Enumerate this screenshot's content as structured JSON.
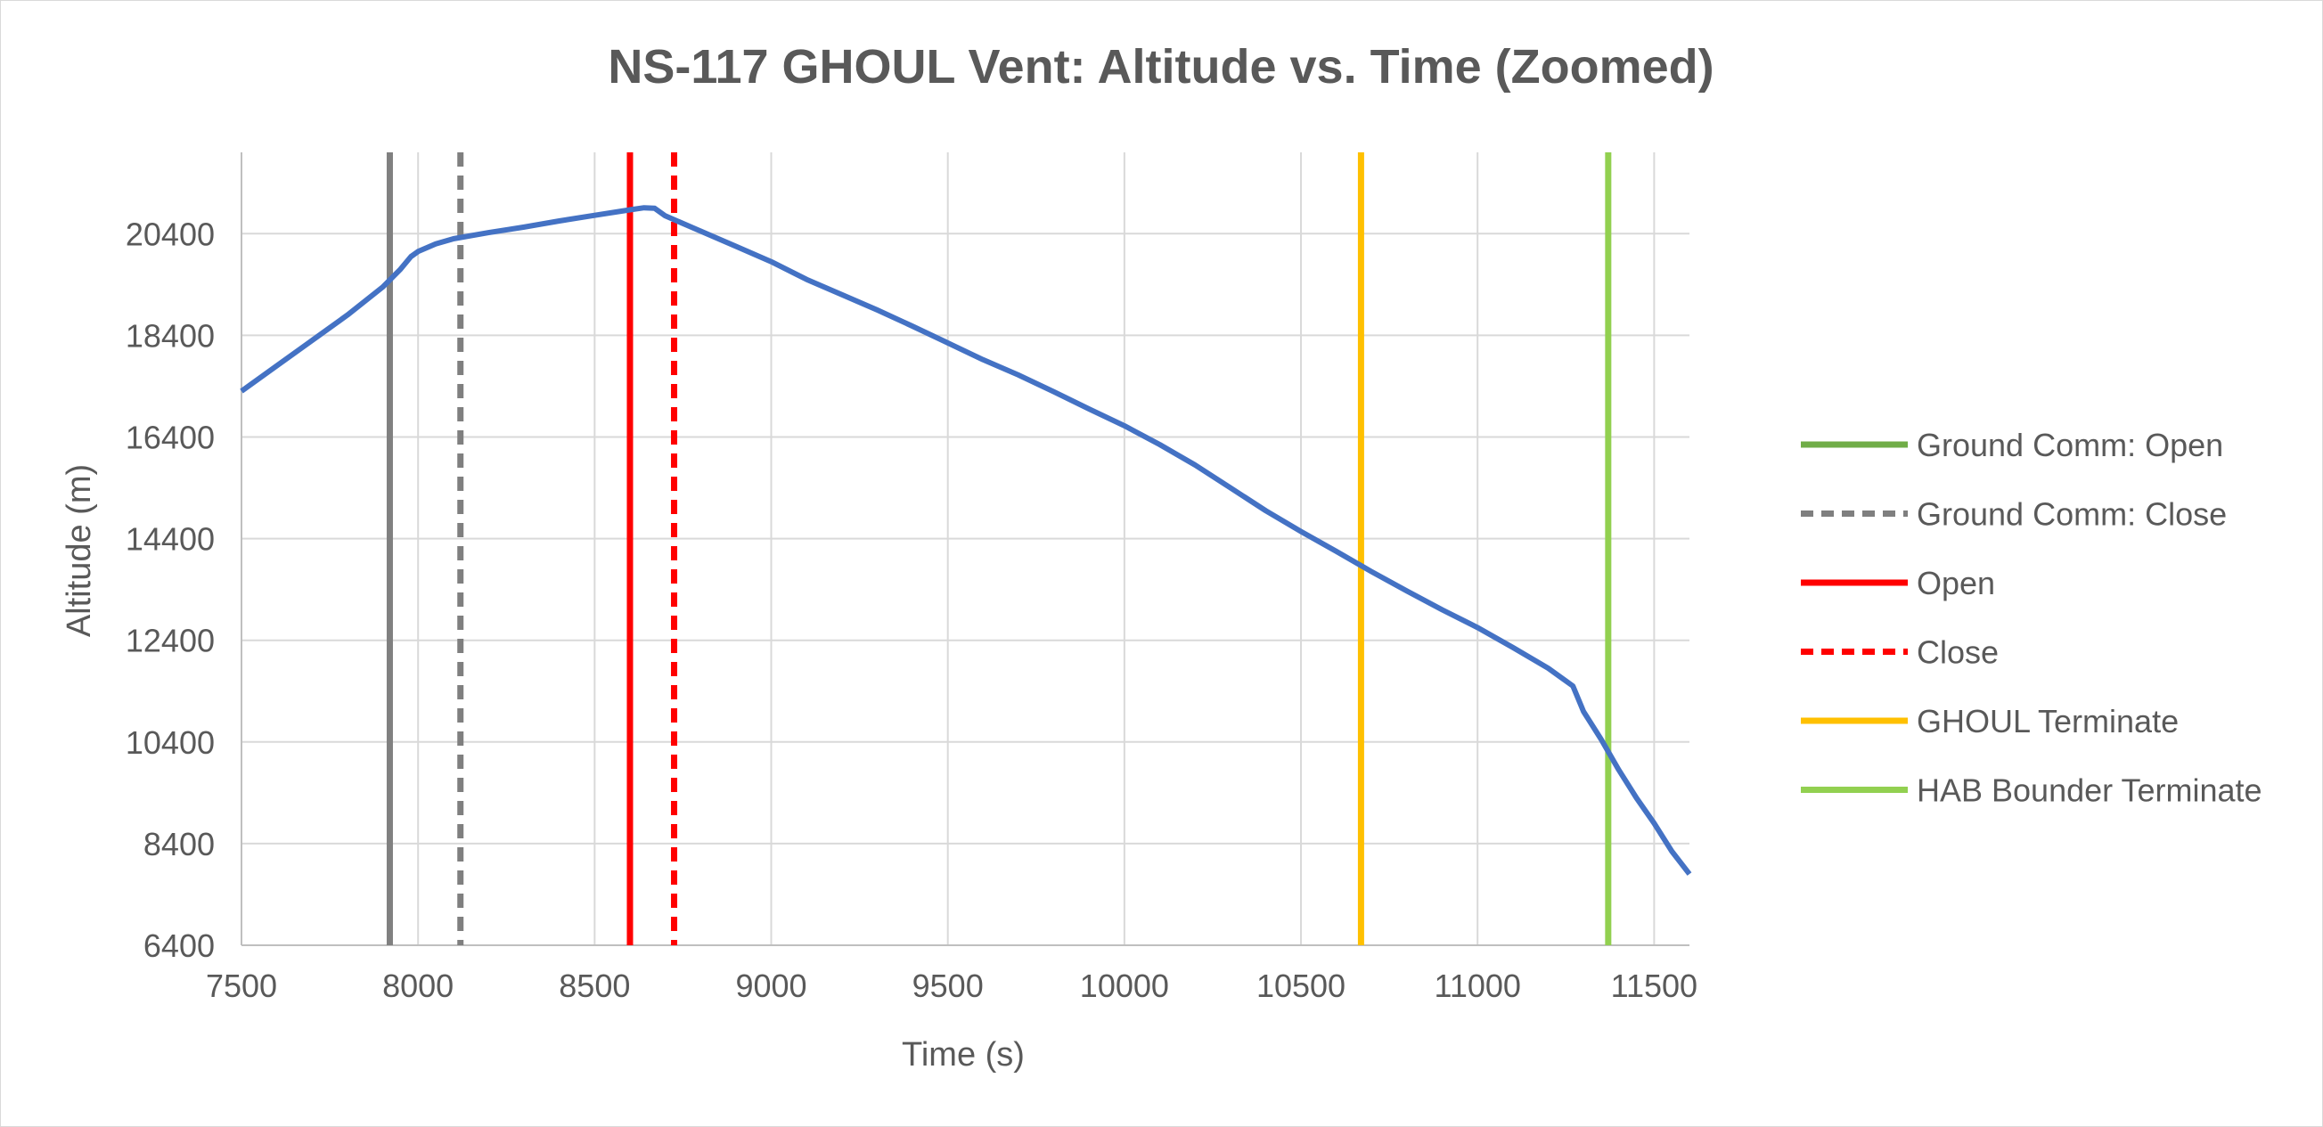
{
  "chart_data": {
    "type": "line",
    "title": "NS-117 GHOUL Vent: Altitude vs. Time (Zoomed)",
    "xlabel": "Time (s)",
    "ylabel": "Altitude (m)",
    "xlim": [
      7500,
      11600
    ],
    "ylim": [
      6400,
      22000
    ],
    "x_ticks": [
      "7500",
      "8000",
      "8500",
      "9000",
      "9500",
      "10000",
      "10500",
      "11000",
      "11500"
    ],
    "y_ticks": [
      "6400",
      "8400",
      "10400",
      "12400",
      "14400",
      "16400",
      "18400",
      "20400"
    ],
    "grid": true,
    "legend_position": "right",
    "series": [
      {
        "type": "line",
        "color": "#4472C4",
        "x": [
          7500,
          7600,
          7700,
          7800,
          7900,
          7950,
          7980,
          8000,
          8050,
          8100,
          8200,
          8300,
          8400,
          8500,
          8600,
          8640,
          8670,
          8700,
          8800,
          8900,
          9000,
          9100,
          9200,
          9300,
          9400,
          9500,
          9600,
          9700,
          9800,
          9900,
          10000,
          10100,
          10200,
          10300,
          10400,
          10500,
          10600,
          10700,
          10800,
          10900,
          11000,
          11100,
          11200,
          11270,
          11300,
          11350,
          11400,
          11450,
          11500,
          11550,
          11600
        ],
        "y": [
          17300,
          17800,
          18300,
          18800,
          19350,
          19700,
          19950,
          20050,
          20200,
          20300,
          20420,
          20530,
          20650,
          20760,
          20870,
          20910,
          20900,
          20750,
          20450,
          20150,
          19850,
          19500,
          19200,
          18900,
          18580,
          18250,
          17920,
          17620,
          17290,
          16950,
          16620,
          16250,
          15850,
          15400,
          14950,
          14540,
          14150,
          13750,
          13370,
          13000,
          12650,
          12260,
          11850,
          11500,
          11000,
          10450,
          9850,
          9300,
          8800,
          8250,
          7800
        ]
      },
      {
        "name": "Ground Comm: Open",
        "type": "vline",
        "color": "#70AD47",
        "dash": "solid",
        "x": null
      },
      {
        "name": "Ground Comm: Close",
        "type": "vline",
        "color": "#7F7F7F",
        "dash": "dashed",
        "x": 8120
      },
      {
        "name": "Open",
        "type": "vline",
        "color": "#FF0000",
        "dash": "solid",
        "x": 8600
      },
      {
        "name": "Close",
        "type": "vline",
        "color": "#FF0000",
        "dash": "dashed",
        "x": 8725
      },
      {
        "name": "GHOUL Terminate",
        "type": "vline",
        "color": "#FFC000",
        "dash": "solid",
        "x": 10670
      },
      {
        "name": "HAB Bounder Terminate",
        "type": "vline",
        "color": "#92D050",
        "dash": "solid",
        "x": 11370
      }
    ],
    "unlabeled_marker": {
      "type": "vline",
      "color": "#808080",
      "dash": "solid",
      "x": 7920
    }
  }
}
